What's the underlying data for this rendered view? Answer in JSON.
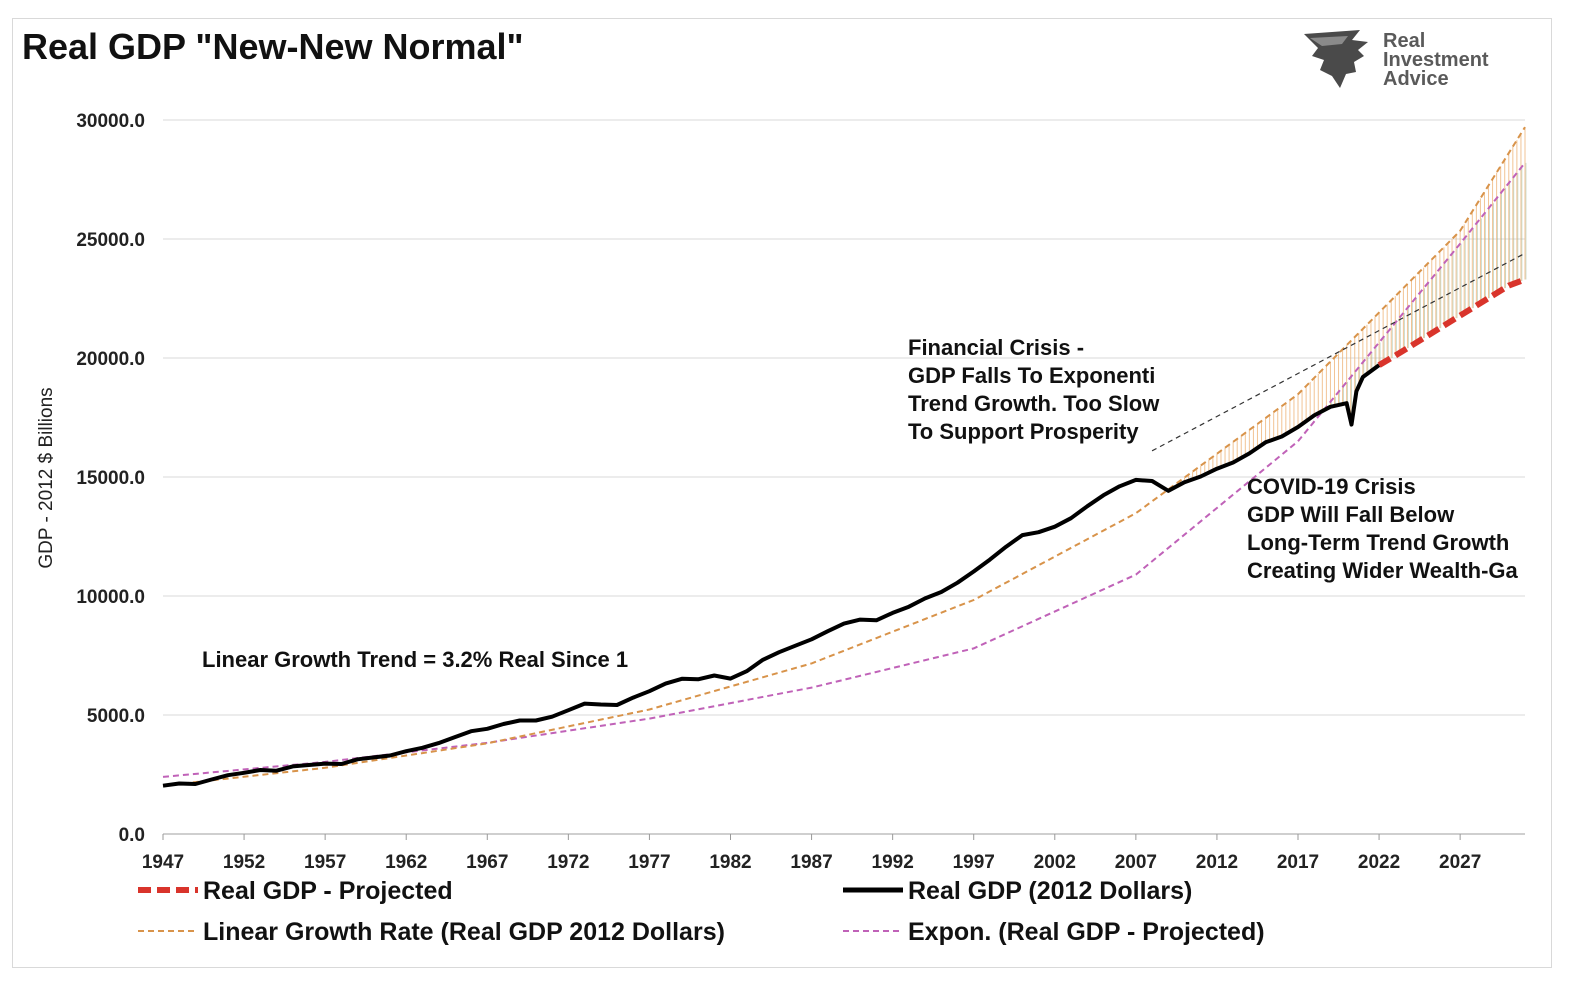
{
  "chart_data": {
    "type": "line",
    "title": "Real GDP \"New-New Normal\"",
    "ylabel": "GDP - 2012 $ Billions",
    "xlabel": "",
    "xlim": [
      1947,
      2031
    ],
    "ylim": [
      0,
      30000
    ],
    "yticks": [
      "0.0",
      "5000.0",
      "10000.0",
      "15000.0",
      "20000.0",
      "25000.0",
      "30000.0"
    ],
    "xticks": [
      "1947",
      "1952",
      "1957",
      "1962",
      "1967",
      "1972",
      "1977",
      "1982",
      "1987",
      "1992",
      "1997",
      "2002",
      "2007",
      "2012",
      "2017",
      "2022",
      "2027"
    ],
    "grid": true,
    "legend_position": "bottom",
    "series": [
      {
        "name": "Real GDP - Projected",
        "style": "dashed-thick",
        "color": "#d9342b",
        "x": [
          2022,
          2023,
          2024,
          2025,
          2026,
          2027,
          2028,
          2029,
          2030,
          2031
        ],
        "y": [
          19700,
          20100,
          20520,
          20940,
          21360,
          21780,
          22200,
          22620,
          23040,
          23300
        ]
      },
      {
        "name": "Real GDP (2012 Dollars)",
        "style": "solid-thick",
        "color": "#000000",
        "x": [
          1947,
          1948,
          1949,
          1950,
          1951,
          1952,
          1953,
          1954,
          1955,
          1956,
          1957,
          1958,
          1959,
          1960,
          1961,
          1962,
          1963,
          1964,
          1965,
          1966,
          1967,
          1968,
          1969,
          1970,
          1971,
          1972,
          1973,
          1974,
          1975,
          1976,
          1977,
          1978,
          1979,
          1980,
          1981,
          1982,
          1983,
          1984,
          1985,
          1986,
          1987,
          1988,
          1989,
          1990,
          1991,
          1992,
          1993,
          1994,
          1995,
          1996,
          1997,
          1998,
          1999,
          2000,
          2001,
          2002,
          2003,
          2004,
          2005,
          2006,
          2007,
          2008,
          2009,
          2010,
          2011,
          2012,
          2013,
          2014,
          2015,
          2016,
          2017,
          2018,
          2019,
          2020,
          2020.3,
          2020.6,
          2021,
          2022
        ],
        "y": [
          2030,
          2120,
          2100,
          2290,
          2470,
          2570,
          2690,
          2660,
          2840,
          2900,
          2960,
          2940,
          3140,
          3220,
          3300,
          3480,
          3620,
          3820,
          4070,
          4320,
          4420,
          4620,
          4770,
          4770,
          4930,
          5200,
          5480,
          5440,
          5420,
          5730,
          6000,
          6320,
          6520,
          6500,
          6660,
          6530,
          6840,
          7320,
          7640,
          7910,
          8180,
          8520,
          8840,
          9010,
          8980,
          9290,
          9550,
          9900,
          10170,
          10560,
          11030,
          11530,
          12070,
          12560,
          12680,
          12910,
          13270,
          13770,
          14230,
          14610,
          14880,
          14830,
          14420,
          14780,
          15020,
          15350,
          15610,
          15990,
          16460,
          16700,
          17100,
          17590,
          17950,
          18100,
          17200,
          18600,
          19200,
          19700
        ]
      },
      {
        "name": "Linear Growth Rate (Real GDP 2012 Dollars)",
        "style": "dashed-thin",
        "color": "#d8934a",
        "x": [
          1947,
          1957,
          1967,
          1977,
          1987,
          1997,
          2007,
          2017,
          2027,
          2031
        ],
        "y": [
          2030,
          2780,
          3810,
          5230,
          7170,
          9830,
          13480,
          18480,
          25340,
          29700
        ]
      },
      {
        "name": "Expon. (Real GDP - Projected)",
        "style": "dashed-thin",
        "color": "#c062b8",
        "x": [
          1947,
          1957,
          1967,
          1977,
          1987,
          1997,
          2007,
          2017,
          2027,
          2031
        ],
        "y": [
          2400,
          3030,
          3830,
          4850,
          6150,
          7800,
          10900,
          16500,
          24800,
          28200
        ]
      }
    ],
    "annotations": [
      "Financial Crisis -",
      "GDP Falls To Exponenti",
      "Trend Growth. Too Slow",
      "To Support Prosperity",
      "COVID-19 Crisis",
      "GDP Will Fall Below",
      "Long-Term Trend Growth",
      "Creating Wider Wealth-Ga",
      "Linear Growth Trend = 3.2% Real Since 1"
    ]
  },
  "branding": {
    "logo_lines": [
      "Real",
      "Investment",
      "Advice"
    ]
  }
}
